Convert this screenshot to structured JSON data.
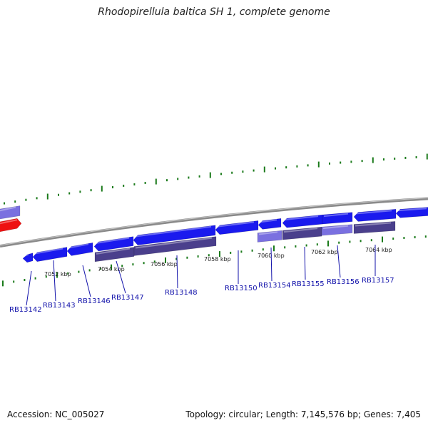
{
  "title": "Rhodopirellula baltica SH 1, complete genome",
  "footer": {
    "accession": "Accession: NC_005027",
    "summary": "Topology: circular; Length: 7,145,576 bp; Genes: 7,405"
  },
  "colors": {
    "gene_forward": "#1a1aee",
    "gene_light": "#7a70e0",
    "gene_dark": "#4a3f8c",
    "gene_highlight": "#ee1111",
    "backbone": "#8a8a8a",
    "tick": "#1a7a1a",
    "label_line": "#1111aa"
  },
  "kbp_labels": [
    "7052 kbp",
    "7054 kbp",
    "7056 kbp",
    "7058 kbp",
    "7060 kbp",
    "7062 kbp",
    "7064 kbp"
  ],
  "gene_labels": [
    "RB13142",
    "RB13143",
    "RB13146",
    "RB13147",
    "RB13148",
    "RB13150",
    "RB13154",
    "RB13155",
    "RB13156",
    "RB13157"
  ]
}
